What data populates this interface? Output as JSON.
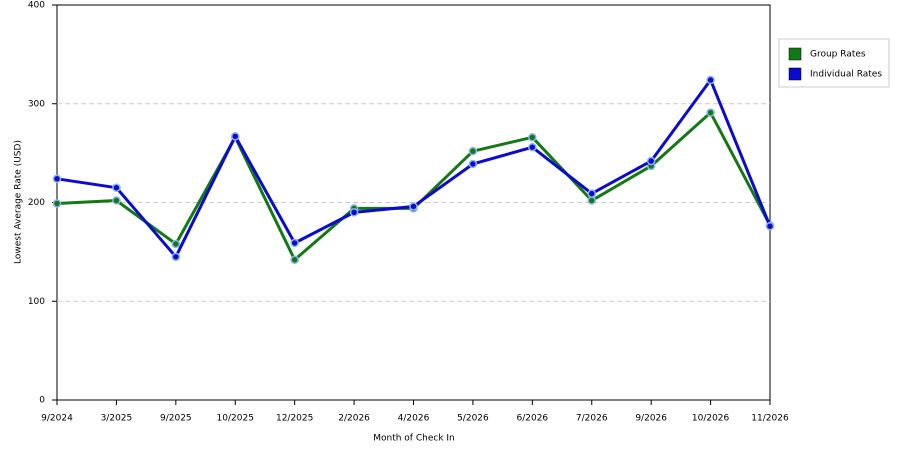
{
  "chart_data": {
    "type": "line",
    "x_label": "Month of Check In",
    "y_label": "Lowest Average Rate (USD)",
    "categories": [
      "9/2024",
      "3/2025",
      "9/2025",
      "10/2025",
      "12/2025",
      "2/2026",
      "4/2026",
      "5/2026",
      "6/2026",
      "7/2026",
      "9/2026",
      "10/2026",
      "11/2026"
    ],
    "series": [
      {
        "name": "Group Rates",
        "color": "#137a13",
        "values": [
          199,
          202,
          158,
          266,
          142,
          194,
          194,
          252,
          266,
          202,
          237,
          291,
          177
        ]
      },
      {
        "name": "Individual Rates",
        "color": "#0b0bd0",
        "values": [
          224,
          215,
          145,
          267,
          159,
          190,
          196,
          239,
          256,
          209,
          242,
          324,
          176
        ]
      }
    ],
    "ylim": [
      0,
      400
    ],
    "yticks": [
      0,
      100,
      200,
      300,
      400
    ],
    "grid": true,
    "legend": "right"
  }
}
